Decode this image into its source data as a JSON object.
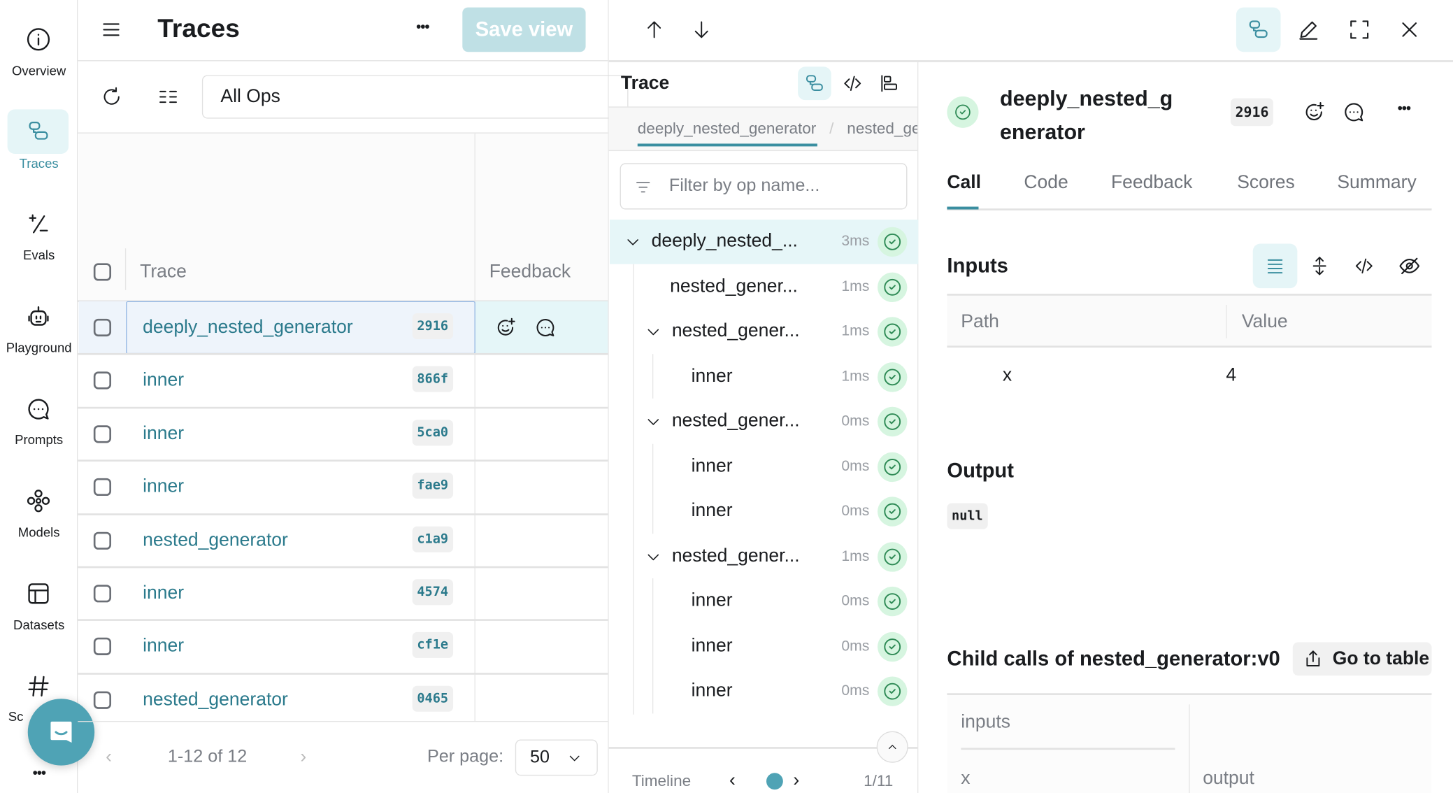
{
  "nav": {
    "items": [
      {
        "label": "Overview",
        "icon": "info-icon"
      },
      {
        "label": "Traces",
        "icon": "traces-icon",
        "active": true
      },
      {
        "label": "Evals",
        "icon": "plus-minus-icon"
      },
      {
        "label": "Playground",
        "icon": "robot-icon"
      },
      {
        "label": "Prompts",
        "icon": "chat-icon"
      },
      {
        "label": "Models",
        "icon": "models-icon"
      },
      {
        "label": "Datasets",
        "icon": "table-icon"
      },
      {
        "label": "Sc",
        "icon": "hash-icon"
      }
    ],
    "more": "•••"
  },
  "header": {
    "title": "Traces",
    "more": "•••",
    "save_view": "Save view"
  },
  "toolbar": {
    "filter_value": "All Ops"
  },
  "table": {
    "columns": [
      "Trace",
      "Feedback"
    ],
    "rows": [
      {
        "name": "deeply_nested_generator",
        "id": "2916",
        "selected": true
      },
      {
        "name": "inner",
        "id": "866f"
      },
      {
        "name": "inner",
        "id": "5ca0"
      },
      {
        "name": "inner",
        "id": "fae9"
      },
      {
        "name": "nested_generator",
        "id": "c1a9"
      },
      {
        "name": "inner",
        "id": "4574"
      },
      {
        "name": "inner",
        "id": "cf1e"
      },
      {
        "name": "nested_generator",
        "id": "0465"
      }
    ]
  },
  "pagination": {
    "range": "1-12 of 12",
    "per_page_label": "Per page:",
    "per_page": "50"
  },
  "trace": {
    "title": "Trace",
    "breadcrumb": [
      "deeply_nested_generator",
      "/",
      "nested_ge"
    ],
    "filter_placeholder": "Filter by op name...",
    "tree": [
      {
        "name": "deeply_nested_...",
        "ms": "3ms",
        "depth": 0,
        "chevron": true,
        "status": "success"
      },
      {
        "name": "nested_gener...",
        "ms": "1ms",
        "depth": 1,
        "chevron": false,
        "status": "success"
      },
      {
        "name": "nested_gener...",
        "ms": "1ms",
        "depth": 1,
        "chevron": true,
        "status": "success"
      },
      {
        "name": "inner",
        "ms": "1ms",
        "depth": 2,
        "chevron": false,
        "status": "success"
      },
      {
        "name": "nested_gener...",
        "ms": "0ms",
        "depth": 1,
        "chevron": true,
        "status": "success"
      },
      {
        "name": "inner",
        "ms": "0ms",
        "depth": 2,
        "chevron": false,
        "status": "success"
      },
      {
        "name": "inner",
        "ms": "0ms",
        "depth": 2,
        "chevron": false,
        "status": "success"
      },
      {
        "name": "nested_gener...",
        "ms": "1ms",
        "depth": 1,
        "chevron": true,
        "status": "success"
      },
      {
        "name": "inner",
        "ms": "0ms",
        "depth": 2,
        "chevron": false,
        "status": "success"
      },
      {
        "name": "inner",
        "ms": "0ms",
        "depth": 2,
        "chevron": false,
        "status": "success"
      },
      {
        "name": "inner",
        "ms": "0ms",
        "depth": 2,
        "chevron": false,
        "status": "success"
      }
    ],
    "timeline_label": "Timeline",
    "timeline_pos": "1/11"
  },
  "detail": {
    "title_line1": "deeply_nested_g",
    "title_line2": "enerator",
    "id": "2916",
    "more": "•••",
    "tabs": [
      "Call",
      "Code",
      "Feedback",
      "Scores",
      "Summary"
    ],
    "active_tab": "Call",
    "inputs_heading": "Inputs",
    "inputs_columns": [
      "Path",
      "Value"
    ],
    "inputs_rows": [
      {
        "path": "x",
        "value": "4"
      }
    ],
    "output_heading": "Output",
    "output_value": "null",
    "child_heading": "Child calls of nested_generator:v0",
    "go_to_table": "Go to table",
    "child_columns": [
      "inputs",
      "",
      "x",
      "output"
    ]
  },
  "colors": {
    "accent": "#3a8ea0",
    "selected_row": "#eef4fb",
    "success": "#2e8a55",
    "save_button": "#bfe0e5"
  }
}
